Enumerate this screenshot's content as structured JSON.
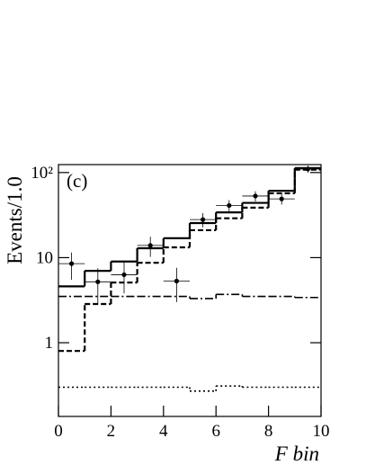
{
  "chart_data": {
    "type": "histogram",
    "annotation": "(c)",
    "y_label": "Events/1.0",
    "x_label": "F bin",
    "log_y": true,
    "bins": [
      0,
      1,
      2,
      3,
      4,
      5,
      6,
      7,
      8,
      9,
      10
    ],
    "xlim": [
      0,
      10
    ],
    "xticks": [
      0,
      2,
      4,
      6,
      8,
      10
    ],
    "ylim": [
      0.136,
      124
    ],
    "yticks": [
      1,
      10,
      {
        "value": 100,
        "label": "10²"
      }
    ],
    "series": [
      {
        "style": "solid",
        "color": "#000000",
        "values": [
          4.6,
          7.0,
          9.0,
          12.9,
          16.9,
          25.5,
          34,
          44,
          61,
          113
        ]
      },
      {
        "style": "dashed",
        "color": "#000000",
        "values": [
          0.8,
          2.85,
          5.1,
          8.7,
          13.2,
          21,
          29,
          38.7,
          57,
          108
        ]
      },
      {
        "style": "dashdot",
        "color": "#000000",
        "values": [
          3.5,
          3.5,
          3.5,
          3.5,
          3.5,
          3.3,
          3.7,
          3.5,
          3.5,
          3.4
        ]
      },
      {
        "style": "dotted",
        "color": "#000000",
        "values": [
          0.3,
          0.3,
          0.3,
          0.3,
          0.3,
          0.27,
          0.31,
          0.3,
          0.3,
          0.3
        ]
      }
    ],
    "points": {
      "color": "#000000",
      "x": [
        0.5,
        1.5,
        2.5,
        3.5,
        4.5,
        5.5,
        6.5,
        7.5,
        8.5,
        9.5
      ],
      "values": [
        8.5,
        5.2,
        6.3,
        13.9,
        5.3,
        28,
        41,
        53,
        49,
        110
      ],
      "errors": [
        3,
        2.3,
        2.5,
        3.7,
        2.3,
        5.3,
        6.4,
        7.3,
        7,
        10.5
      ]
    }
  }
}
